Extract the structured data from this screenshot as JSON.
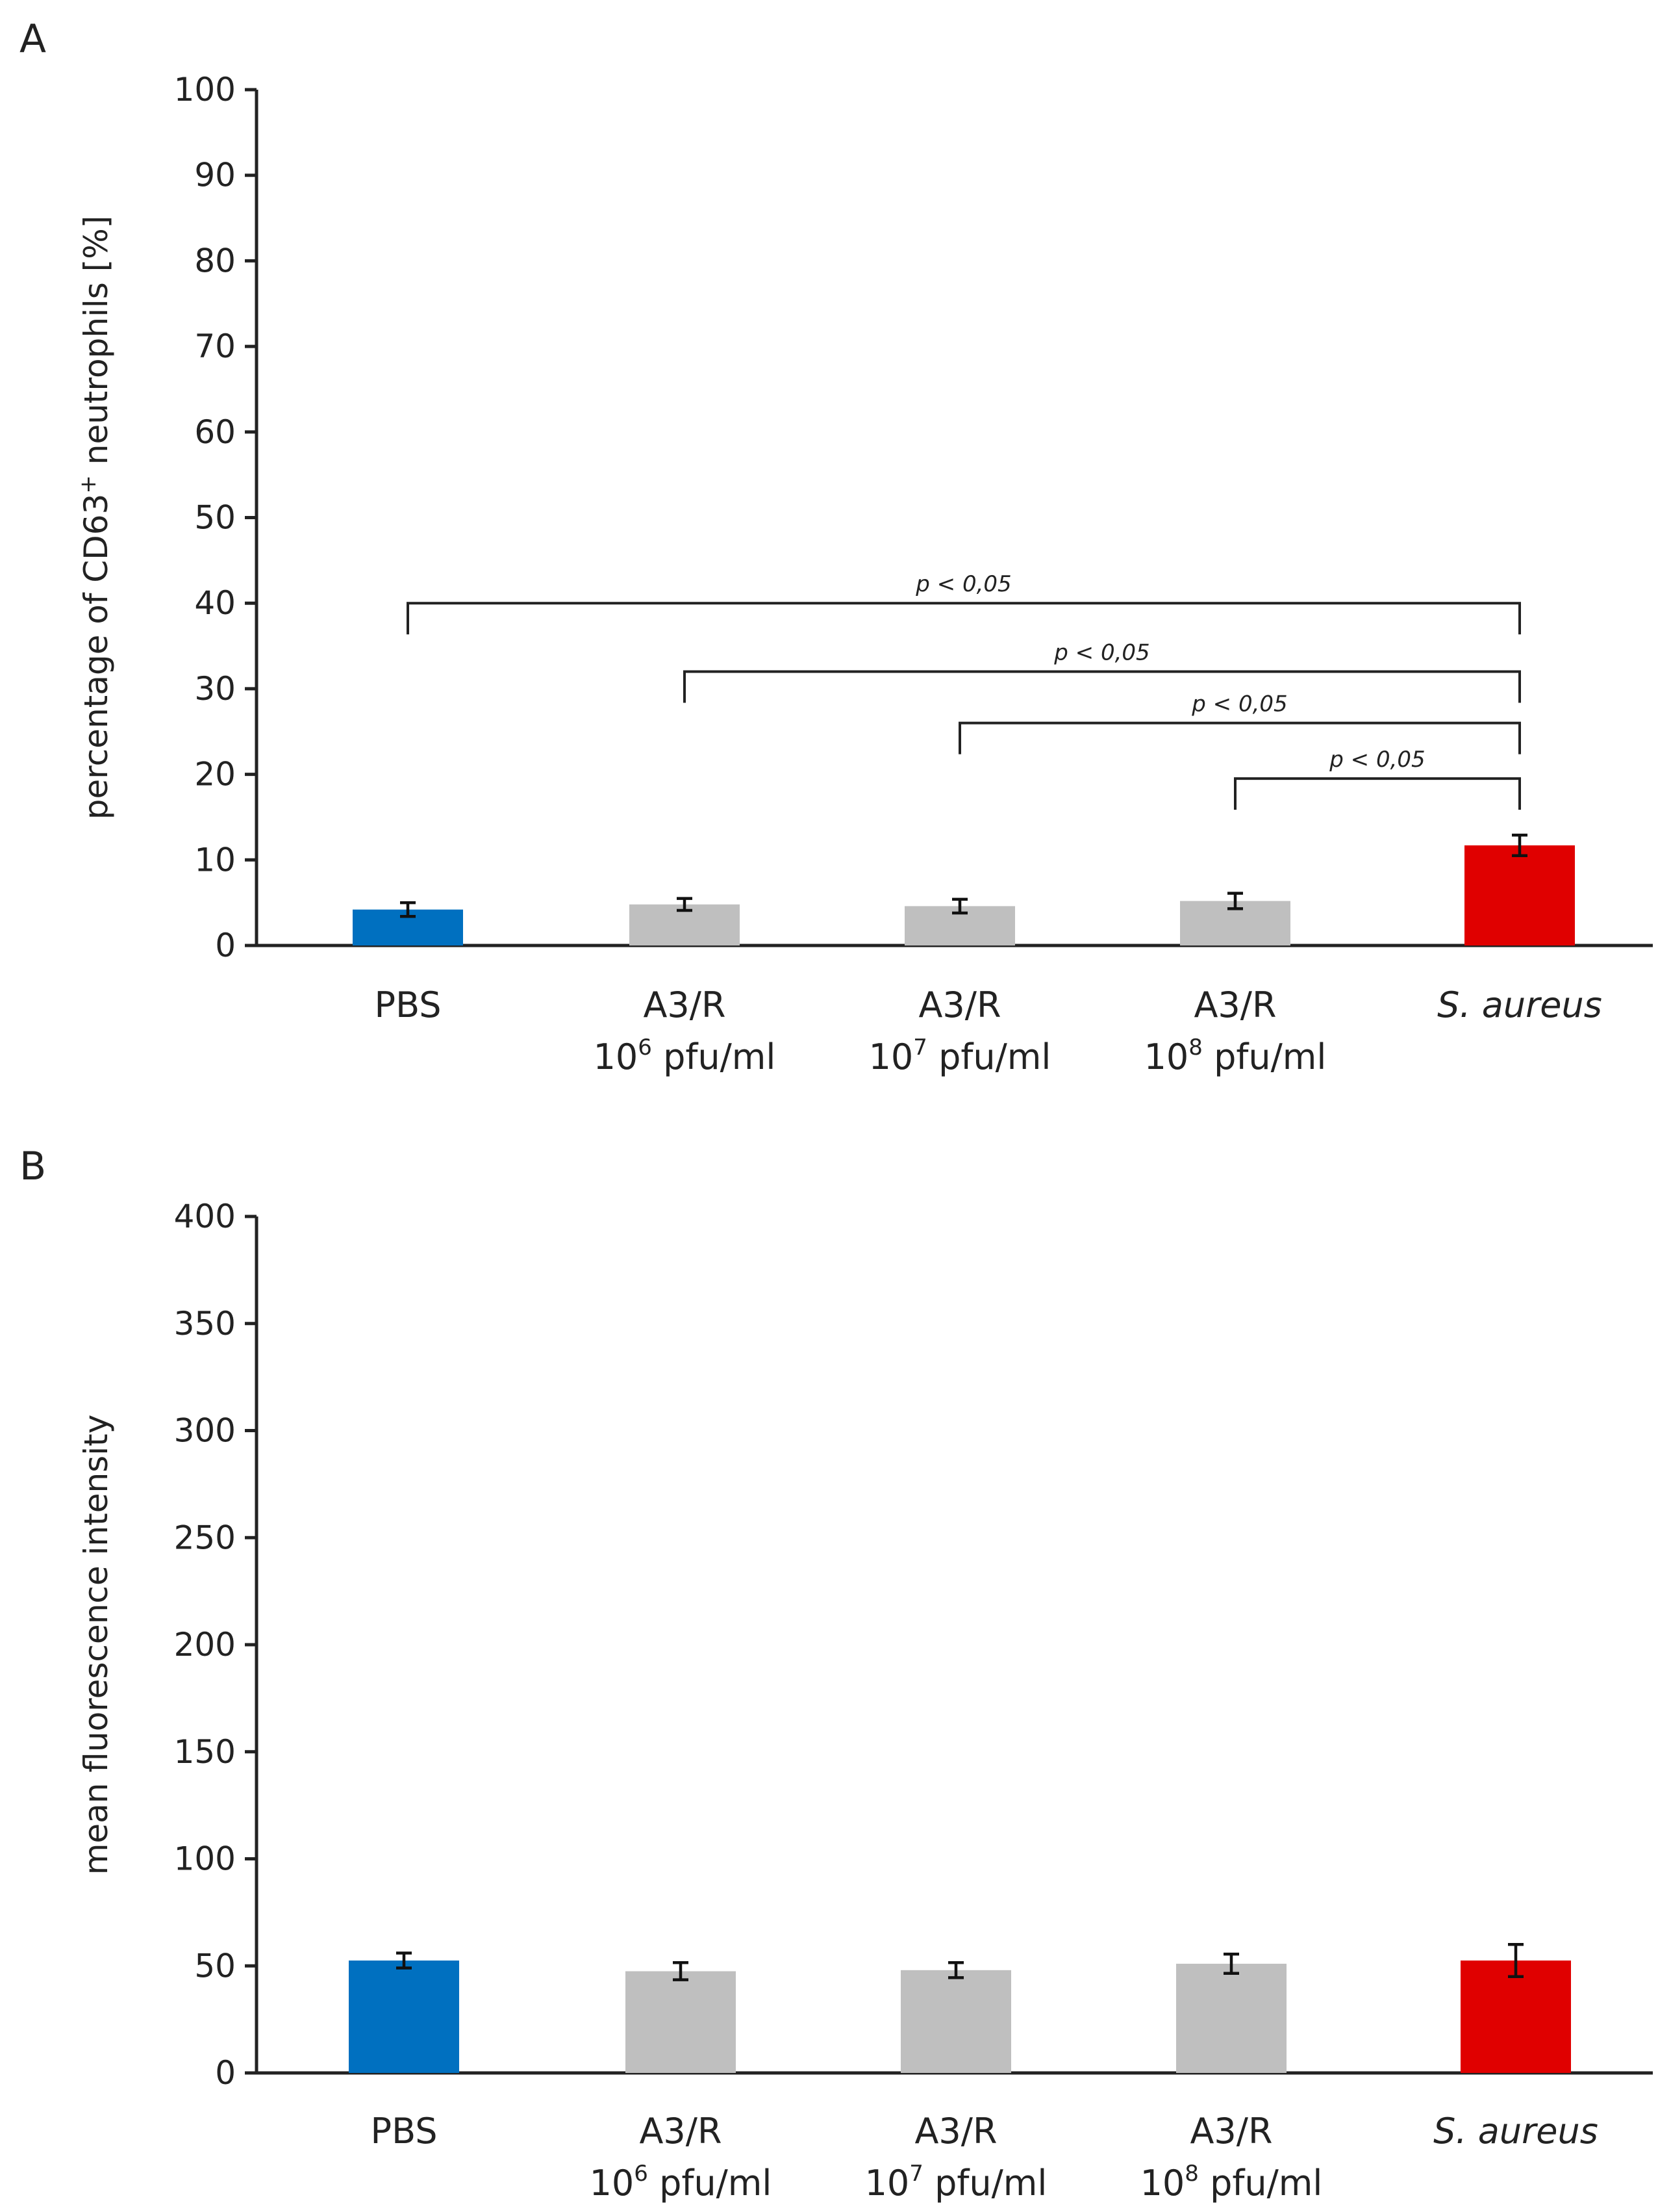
{
  "chart_data": [
    {
      "panel_label": "A",
      "type": "bar",
      "ylabel": "percentage of CD63",
      "ylabel_sup": "+",
      "ylabel_end": " neutrophils [%]",
      "ylim": [
        0,
        100
      ],
      "yticks": [
        0,
        10,
        20,
        30,
        40,
        50,
        60,
        70,
        80,
        90,
        100
      ],
      "categories": [
        {
          "line1": "PBS",
          "line2": "",
          "exp": "",
          "unit": "",
          "italic": false
        },
        {
          "line1": "A3/R",
          "line2": "10",
          "exp": "6",
          "unit": " pfu/ml",
          "italic": false
        },
        {
          "line1": "A3/R",
          "line2": "10",
          "exp": "7",
          "unit": " pfu/ml",
          "italic": false
        },
        {
          "line1": "A3/R",
          "line2": "10",
          "exp": "8",
          "unit": " pfu/ml",
          "italic": false
        },
        {
          "line1": "S. aureus",
          "line2": "",
          "exp": "",
          "unit": "",
          "italic": true
        }
      ],
      "values": [
        4.2,
        4.8,
        4.6,
        5.2,
        11.7
      ],
      "errors": [
        0.8,
        0.7,
        0.8,
        0.9,
        1.2
      ],
      "colors": [
        "#0070C0",
        "#BFBFBF",
        "#BFBFBF",
        "#BFBFBF",
        "#E00000"
      ],
      "significance": [
        {
          "from": 0,
          "to": 4,
          "level": 40,
          "label": "p < 0,05"
        },
        {
          "from": 1,
          "to": 4,
          "level": 32,
          "label": "p < 0,05"
        },
        {
          "from": 2,
          "to": 4,
          "level": 26,
          "label": "p < 0,05"
        },
        {
          "from": 3,
          "to": 4,
          "level": 19.5,
          "label": "p < 0,05"
        }
      ]
    },
    {
      "panel_label": "B",
      "type": "bar",
      "ylabel": "mean fluorescence intensity",
      "ylabel_sup": "",
      "ylabel_end": "",
      "ylim": [
        0,
        400
      ],
      "yticks": [
        0,
        50,
        100,
        150,
        200,
        250,
        300,
        350,
        400
      ],
      "categories": [
        {
          "line1": "PBS",
          "line2": "",
          "exp": "",
          "unit": "",
          "italic": false
        },
        {
          "line1": "A3/R",
          "line2": "10",
          "exp": "6",
          "unit": " pfu/ml",
          "italic": false
        },
        {
          "line1": "A3/R",
          "line2": "10",
          "exp": "7",
          "unit": " pfu/ml",
          "italic": false
        },
        {
          "line1": "A3/R",
          "line2": "10",
          "exp": "8",
          "unit": " pfu/ml",
          "italic": false
        },
        {
          "line1": "S. aureus",
          "line2": "",
          "exp": "",
          "unit": "",
          "italic": true
        }
      ],
      "values": [
        52.5,
        47.5,
        48,
        51,
        52.5
      ],
      "errors": [
        3.5,
        4,
        3.5,
        4.5,
        7.5
      ],
      "colors": [
        "#0070C0",
        "#BFBFBF",
        "#BFBFBF",
        "#BFBFBF",
        "#E00000"
      ],
      "significance": []
    }
  ]
}
